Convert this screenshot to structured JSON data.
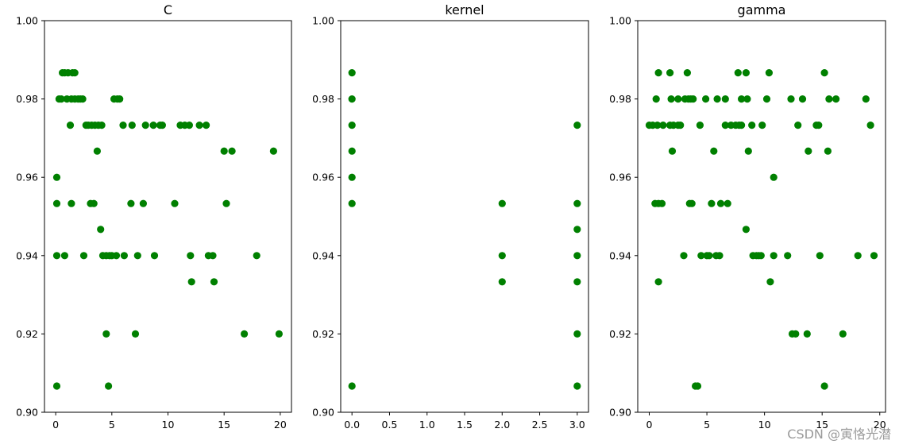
{
  "watermark": "CSDN @寅恪光潜",
  "chart_data": [
    {
      "type": "scatter",
      "title": "C",
      "xlim": [
        -1,
        21
      ],
      "ylim": [
        0.9,
        1.0
      ],
      "xticks": [
        0,
        5,
        10,
        15,
        20
      ],
      "xtick_labels": [
        "0",
        "5",
        "10",
        "15",
        "20"
      ],
      "yticks": [
        0.9,
        0.92,
        0.94,
        0.96,
        0.98,
        1.0
      ],
      "ytick_labels": [
        "0.90",
        "0.92",
        "0.94",
        "0.96",
        "0.98",
        "1.00"
      ],
      "color": "#008000",
      "grid": false,
      "points": [
        [
          0.1,
          0.9067
        ],
        [
          0.1,
          0.94
        ],
        [
          0.1,
          0.9533
        ],
        [
          0.1,
          0.96
        ],
        [
          0.3,
          0.98
        ],
        [
          0.5,
          0.98
        ],
        [
          0.6,
          0.9867
        ],
        [
          0.8,
          0.94
        ],
        [
          0.8,
          0.9867
        ],
        [
          1.0,
          0.98
        ],
        [
          1.1,
          0.9867
        ],
        [
          1.3,
          0.9733
        ],
        [
          1.4,
          0.98
        ],
        [
          1.4,
          0.9533
        ],
        [
          1.5,
          0.9867
        ],
        [
          1.7,
          0.98
        ],
        [
          1.7,
          0.9867
        ],
        [
          2.0,
          0.98
        ],
        [
          2.2,
          0.98
        ],
        [
          2.4,
          0.98
        ],
        [
          2.5,
          0.94
        ],
        [
          2.7,
          0.9733
        ],
        [
          2.9,
          0.9733
        ],
        [
          3.1,
          0.9533
        ],
        [
          3.2,
          0.9733
        ],
        [
          3.4,
          0.9533
        ],
        [
          3.5,
          0.9733
        ],
        [
          3.7,
          0.9667
        ],
        [
          3.8,
          0.9733
        ],
        [
          4.0,
          0.9467
        ],
        [
          4.1,
          0.9733
        ],
        [
          4.2,
          0.94
        ],
        [
          4.5,
          0.92
        ],
        [
          4.5,
          0.94
        ],
        [
          4.7,
          0.9067
        ],
        [
          4.8,
          0.94
        ],
        [
          5.0,
          0.94
        ],
        [
          5.2,
          0.98
        ],
        [
          5.4,
          0.94
        ],
        [
          5.5,
          0.98
        ],
        [
          5.7,
          0.98
        ],
        [
          6.0,
          0.9733
        ],
        [
          6.1,
          0.94
        ],
        [
          6.7,
          0.9533
        ],
        [
          6.8,
          0.9733
        ],
        [
          7.1,
          0.92
        ],
        [
          7.3,
          0.94
        ],
        [
          7.8,
          0.9533
        ],
        [
          8.0,
          0.9733
        ],
        [
          8.7,
          0.9733
        ],
        [
          8.8,
          0.94
        ],
        [
          9.3,
          0.9733
        ],
        [
          9.5,
          0.9733
        ],
        [
          10.6,
          0.9533
        ],
        [
          11.1,
          0.9733
        ],
        [
          11.5,
          0.9733
        ],
        [
          11.9,
          0.9733
        ],
        [
          12.0,
          0.94
        ],
        [
          12.1,
          0.9333
        ],
        [
          12.8,
          0.9733
        ],
        [
          13.4,
          0.9733
        ],
        [
          13.6,
          0.94
        ],
        [
          14.0,
          0.94
        ],
        [
          14.1,
          0.9333
        ],
        [
          15.0,
          0.9667
        ],
        [
          15.2,
          0.9533
        ],
        [
          15.7,
          0.9667
        ],
        [
          16.8,
          0.92
        ],
        [
          17.9,
          0.94
        ],
        [
          19.4,
          0.9667
        ],
        [
          19.9,
          0.92
        ]
      ]
    },
    {
      "type": "scatter",
      "title": "kernel",
      "xlim": [
        -0.15,
        3.15
      ],
      "ylim": [
        0.9,
        1.0
      ],
      "xticks": [
        0,
        0.5,
        1,
        1.5,
        2,
        2.5,
        3
      ],
      "xtick_labels": [
        "0.0",
        "0.5",
        "1.0",
        "1.5",
        "2.0",
        "2.5",
        "3.0"
      ],
      "yticks": [
        0.9,
        0.92,
        0.94,
        0.96,
        0.98,
        1.0
      ],
      "ytick_labels": [
        "0.90",
        "0.92",
        "0.94",
        "0.96",
        "0.98",
        "1.00"
      ],
      "color": "#008000",
      "grid": false,
      "points": [
        [
          0,
          0.9867
        ],
        [
          0,
          0.98
        ],
        [
          0,
          0.9733
        ],
        [
          0,
          0.9667
        ],
        [
          0,
          0.96
        ],
        [
          0,
          0.9533
        ],
        [
          0,
          0.9067
        ],
        [
          2,
          0.9533
        ],
        [
          2,
          0.94
        ],
        [
          2,
          0.9333
        ],
        [
          3,
          0.9733
        ],
        [
          3,
          0.9533
        ],
        [
          3,
          0.9467
        ],
        [
          3,
          0.94
        ],
        [
          3,
          0.9333
        ],
        [
          3,
          0.92
        ],
        [
          3,
          0.9067
        ]
      ]
    },
    {
      "type": "scatter",
      "title": "gamma",
      "xlim": [
        -1,
        20.5
      ],
      "ylim": [
        0.9,
        1.0
      ],
      "xticks": [
        0,
        5,
        10,
        15,
        20
      ],
      "xtick_labels": [
        "0",
        "5",
        "10",
        "15",
        "20"
      ],
      "yticks": [
        0.9,
        0.92,
        0.94,
        0.96,
        0.98,
        1.0
      ],
      "ytick_labels": [
        "0.90",
        "0.92",
        "0.94",
        "0.96",
        "0.98",
        "1.00"
      ],
      "color": "#008000",
      "grid": false,
      "points": [
        [
          0.0,
          0.9733
        ],
        [
          0.3,
          0.9733
        ],
        [
          0.5,
          0.9533
        ],
        [
          0.6,
          0.98
        ],
        [
          0.7,
          0.9733
        ],
        [
          0.8,
          0.9333
        ],
        [
          0.8,
          0.9533
        ],
        [
          0.8,
          0.9867
        ],
        [
          1.1,
          0.9533
        ],
        [
          1.2,
          0.9733
        ],
        [
          1.8,
          0.9867
        ],
        [
          1.8,
          0.9733
        ],
        [
          1.9,
          0.98
        ],
        [
          2.0,
          0.9667
        ],
        [
          2.1,
          0.9733
        ],
        [
          2.5,
          0.98
        ],
        [
          2.5,
          0.9733
        ],
        [
          2.7,
          0.9733
        ],
        [
          3.0,
          0.94
        ],
        [
          3.1,
          0.98
        ],
        [
          3.3,
          0.9867
        ],
        [
          3.4,
          0.98
        ],
        [
          3.5,
          0.9533
        ],
        [
          3.6,
          0.98
        ],
        [
          3.7,
          0.9533
        ],
        [
          3.8,
          0.98
        ],
        [
          4.0,
          0.9067
        ],
        [
          4.2,
          0.9067
        ],
        [
          4.4,
          0.9733
        ],
        [
          4.5,
          0.94
        ],
        [
          4.9,
          0.98
        ],
        [
          5.0,
          0.94
        ],
        [
          5.2,
          0.94
        ],
        [
          5.4,
          0.9533
        ],
        [
          5.6,
          0.9667
        ],
        [
          5.8,
          0.94
        ],
        [
          5.9,
          0.98
        ],
        [
          6.1,
          0.94
        ],
        [
          6.2,
          0.9533
        ],
        [
          6.6,
          0.98
        ],
        [
          6.6,
          0.9733
        ],
        [
          6.8,
          0.9533
        ],
        [
          7.1,
          0.9733
        ],
        [
          7.5,
          0.9733
        ],
        [
          7.7,
          0.9867
        ],
        [
          7.8,
          0.9733
        ],
        [
          8.0,
          0.9733
        ],
        [
          8.0,
          0.98
        ],
        [
          8.4,
          0.9467
        ],
        [
          8.4,
          0.9867
        ],
        [
          8.5,
          0.98
        ],
        [
          8.6,
          0.9667
        ],
        [
          8.9,
          0.9733
        ],
        [
          9.0,
          0.94
        ],
        [
          9.3,
          0.94
        ],
        [
          9.5,
          0.94
        ],
        [
          9.7,
          0.94
        ],
        [
          9.8,
          0.9733
        ],
        [
          10.2,
          0.98
        ],
        [
          10.4,
          0.9867
        ],
        [
          10.5,
          0.9333
        ],
        [
          10.8,
          0.94
        ],
        [
          10.8,
          0.96
        ],
        [
          12.0,
          0.94
        ],
        [
          12.3,
          0.98
        ],
        [
          12.4,
          0.92
        ],
        [
          12.7,
          0.92
        ],
        [
          12.9,
          0.9733
        ],
        [
          13.3,
          0.98
        ],
        [
          13.7,
          0.92
        ],
        [
          13.8,
          0.9667
        ],
        [
          14.5,
          0.9733
        ],
        [
          14.7,
          0.9733
        ],
        [
          14.8,
          0.94
        ],
        [
          15.2,
          0.9867
        ],
        [
          15.2,
          0.9067
        ],
        [
          15.5,
          0.9667
        ],
        [
          15.6,
          0.98
        ],
        [
          16.2,
          0.98
        ],
        [
          16.8,
          0.92
        ],
        [
          18.1,
          0.94
        ],
        [
          18.8,
          0.98
        ],
        [
          19.2,
          0.9733
        ],
        [
          19.5,
          0.94
        ]
      ]
    }
  ]
}
